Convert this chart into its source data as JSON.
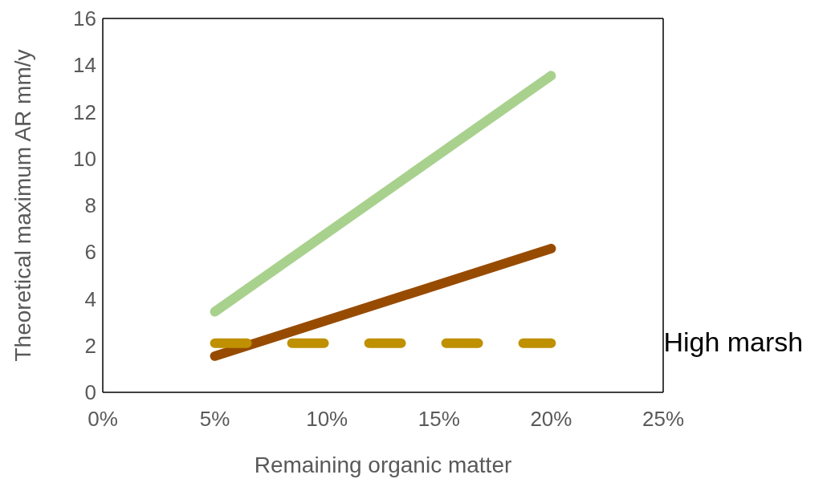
{
  "chart_data": {
    "type": "line",
    "xlabel": "Remaining organic matter",
    "ylabel": "Theoretical maximum AR mm/y",
    "x": [
      0.05,
      0.2
    ],
    "series": [
      {
        "color": "#a9d18e",
        "values": [
          3.45,
          13.55
        ]
      },
      {
        "color": "#974b00",
        "values": [
          1.55,
          6.15
        ]
      },
      {
        "name": "High marsh",
        "color": "#bf9000",
        "values": [
          2.1,
          2.1
        ],
        "line_style": "dashed"
      }
    ],
    "xlim": [
      0,
      0.25
    ],
    "xticks": [
      {
        "value": 0,
        "label": "0%"
      },
      {
        "value": 0.05,
        "label": "5%"
      },
      {
        "value": 0.1,
        "label": "10%"
      },
      {
        "value": 0.15,
        "label": "15%"
      },
      {
        "value": 0.2,
        "label": "20%"
      },
      {
        "value": 0.25,
        "label": "25%"
      }
    ],
    "ylim": [
      0,
      16
    ],
    "yticks": [
      0,
      2,
      4,
      6,
      8,
      10,
      12,
      14,
      16
    ],
    "marker": "none",
    "line_style": "solid"
  }
}
